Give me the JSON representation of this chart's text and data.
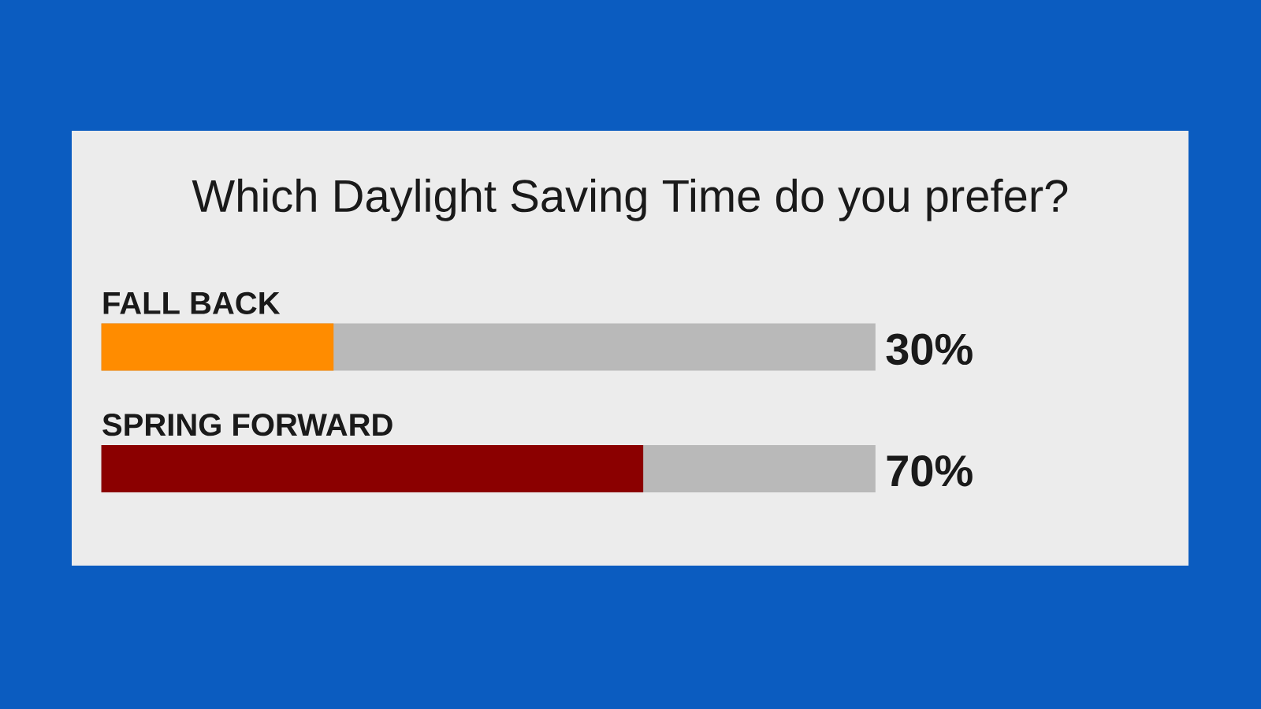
{
  "chart_data": {
    "type": "bar",
    "orientation": "horizontal",
    "title": "Which Daylight Saving Time do you prefer?",
    "categories": [
      "FALL BACK",
      "SPRING FORWARD"
    ],
    "values": [
      30,
      70
    ],
    "colors": [
      "#ff8c00",
      "#8b0000"
    ],
    "xlim": [
      0,
      100
    ],
    "value_labels": [
      "30%",
      "70%"
    ],
    "tick_labels": false
  }
}
